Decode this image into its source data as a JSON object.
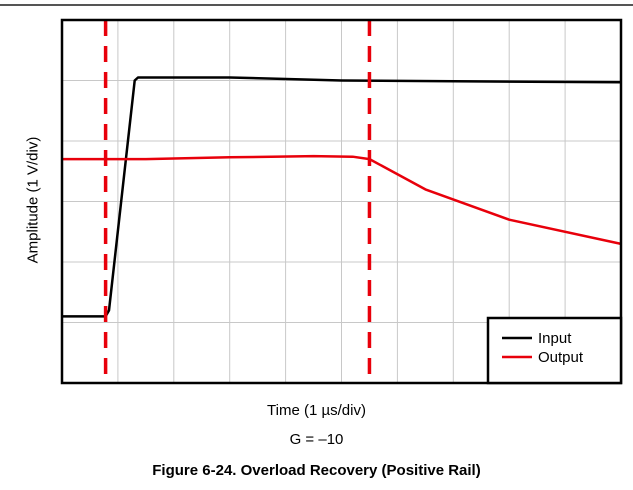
{
  "chart_data": {
    "type": "line",
    "xlabel": "Time (1 µs/div)",
    "ylabel": "Amplitude (1 V/div)",
    "x_range": [
      0,
      10
    ],
    "y_range": [
      0,
      6
    ],
    "grid": true,
    "x_divisions": 10,
    "y_divisions": 6,
    "legend_position": "bottom-right",
    "series": [
      {
        "name": "Input",
        "color": "#000000",
        "points": [
          [
            0,
            1.1
          ],
          [
            0.78,
            1.1
          ],
          [
            0.84,
            1.2
          ],
          [
            1.3,
            5.0
          ],
          [
            1.36,
            5.05
          ],
          [
            3,
            5.05
          ],
          [
            5,
            5.0
          ],
          [
            10,
            4.97
          ]
        ]
      },
      {
        "name": "Output",
        "color": "#e8000b",
        "points": [
          [
            0,
            3.7
          ],
          [
            1.5,
            3.7
          ],
          [
            3,
            3.73
          ],
          [
            4.5,
            3.75
          ],
          [
            5.2,
            3.74
          ],
          [
            5.5,
            3.7
          ],
          [
            6.5,
            3.2
          ],
          [
            8,
            2.7
          ],
          [
            10,
            2.3
          ]
        ]
      }
    ],
    "markers": [
      {
        "type": "vertical-dashed",
        "x": 0.78,
        "color": "#e8000b"
      },
      {
        "type": "vertical-dashed",
        "x": 5.5,
        "color": "#e8000b"
      }
    ]
  },
  "captions": {
    "gain": "G = –10",
    "figure": "Figure 6-24. Overload Recovery (Positive Rail)"
  }
}
